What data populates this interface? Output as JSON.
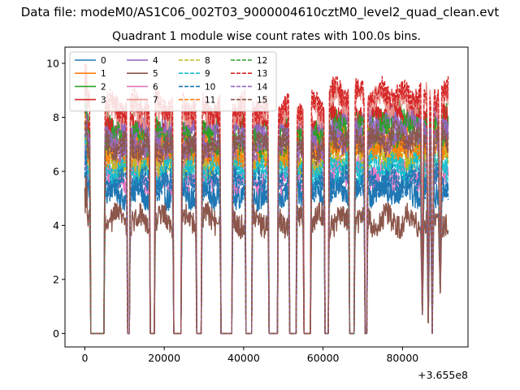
{
  "suptitle": "Data file: modeM0/AS1C06_002T03_9000004610cztM0_level2_quad_clean.evt",
  "chart_data": {
    "type": "line",
    "title": "Quadrant 1 module wise count rates with 100.0s bins.",
    "xlabel": "",
    "ylabel": "",
    "x_offset_label": "+3.655e8",
    "xlim": [
      -5000,
      96500
    ],
    "ylim": [
      -0.5,
      10.6
    ],
    "xticks": [
      0,
      20000,
      40000,
      60000,
      80000
    ],
    "yticks": [
      0,
      2,
      4,
      6,
      8,
      10
    ],
    "grid": false,
    "legend": {
      "placement": "top-left",
      "columns": 4
    },
    "x_range_data": [
      0,
      91500
    ],
    "gaps": [
      [
        1500,
        4800
      ],
      [
        10800,
        11200
      ],
      [
        16500,
        17500
      ],
      [
        22400,
        24200
      ],
      [
        28200,
        29300
      ],
      [
        34300,
        37000
      ],
      [
        40600,
        42000
      ],
      [
        46400,
        48500
      ],
      [
        51600,
        53200
      ],
      [
        55200,
        56800
      ],
      [
        60500,
        61300
      ],
      [
        66700,
        67800
      ],
      [
        70600,
        71000
      ]
    ],
    "dips": [
      [
        85000,
        0.7
      ],
      [
        86500,
        0.4
      ],
      [
        87500,
        0.0
      ],
      [
        89500,
        1.5
      ]
    ],
    "series": [
      {
        "name": "0",
        "color": "#1f77b4",
        "dash": "solid",
        "level": 5.2
      },
      {
        "name": "1",
        "color": "#ff7f0e",
        "dash": "solid",
        "level": 6.6
      },
      {
        "name": "2",
        "color": "#2ca02c",
        "dash": "solid",
        "level": 7.6
      },
      {
        "name": "3",
        "color": "#d62728",
        "dash": "solid",
        "level": 7.8
      },
      {
        "name": "4",
        "color": "#9467bd",
        "dash": "solid",
        "level": 7.4
      },
      {
        "name": "5",
        "color": "#8c564b",
        "dash": "solid",
        "level": 4.2
      },
      {
        "name": "6",
        "color": "#e377c2",
        "dash": "solid",
        "level": 5.8
      },
      {
        "name": "7",
        "color": "#e8948d",
        "dash": "solid",
        "level": 8.2
      },
      {
        "name": "8",
        "color": "#bcbd22",
        "dash": "dashed",
        "level": 6.3
      },
      {
        "name": "9",
        "color": "#17becf",
        "dash": "dashed",
        "level": 6.0
      },
      {
        "name": "10",
        "color": "#1f77b4",
        "dash": "dashed",
        "level": 5.5
      },
      {
        "name": "11",
        "color": "#ff7f0e",
        "dash": "dashed",
        "level": 6.8
      },
      {
        "name": "12",
        "color": "#2ca02c",
        "dash": "dashed",
        "level": 7.2
      },
      {
        "name": "13",
        "color": "#d62728",
        "dash": "dashed",
        "level": 8.4
      },
      {
        "name": "14",
        "color": "#9467bd",
        "dash": "dashed",
        "level": 7.0
      },
      {
        "name": "15",
        "color": "#8c564b",
        "dash": "dashed",
        "level": 6.9
      }
    ]
  }
}
